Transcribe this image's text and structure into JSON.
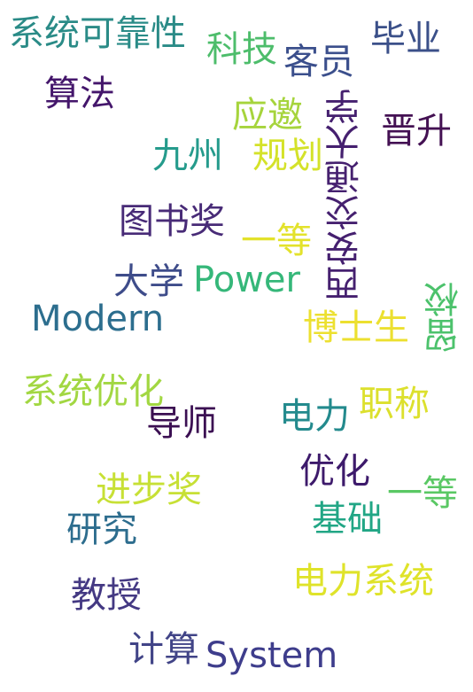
{
  "words": [
    {
      "id": "xitong-kekaoxing",
      "text": "系统可靠性",
      "color": "#2a8b87"
    },
    {
      "id": "keji",
      "text": "科技",
      "color": "#4dbd6b"
    },
    {
      "id": "keyuan",
      "text": "客员",
      "color": "#3b4f8c"
    },
    {
      "id": "biye",
      "text": "毕业",
      "color": "#3b5089"
    },
    {
      "id": "suanfa",
      "text": "算法",
      "color": "#44166b"
    },
    {
      "id": "yingyao",
      "text": "应邀",
      "color": "#a6d43c"
    },
    {
      "id": "xian-jiaotong-daxue",
      "text": "西安交通大学",
      "color": "#45206f",
      "vertical": true
    },
    {
      "id": "jinsheng",
      "text": "晋升",
      "color": "#441153"
    },
    {
      "id": "jiuzhou",
      "text": "九州",
      "color": "#259b8c"
    },
    {
      "id": "guihua",
      "text": "规划",
      "color": "#d4e229"
    },
    {
      "id": "tushujiang",
      "text": "图书奖",
      "color": "#482b77"
    },
    {
      "id": "yideng-1",
      "text": "一等",
      "color": "#e3e22b"
    },
    {
      "id": "daxue",
      "text": "大学",
      "color": "#3e4c8a"
    },
    {
      "id": "power",
      "text": "Power",
      "color": "#35b779"
    },
    {
      "id": "modern",
      "text": "Modern",
      "color": "#2c6e8e"
    },
    {
      "id": "boshisheng",
      "text": "博士生",
      "color": "#ece030"
    },
    {
      "id": "liuxiao",
      "text": "留校",
      "color": "#4cc26c",
      "vertical": true
    },
    {
      "id": "xitong-youhua",
      "text": "系统优化",
      "color": "#a2d742"
    },
    {
      "id": "dianli",
      "text": "电力",
      "color": "#238a8d"
    },
    {
      "id": "zhicheng",
      "text": "职称",
      "color": "#dce02d"
    },
    {
      "id": "daoshi",
      "text": "导师",
      "color": "#3b0f52"
    },
    {
      "id": "youhua",
      "text": "优化",
      "color": "#3d1a6b"
    },
    {
      "id": "jinbujiang",
      "text": "进步奖",
      "color": "#c7e035"
    },
    {
      "id": "yideng-2",
      "text": "一等",
      "color": "#5ac864"
    },
    {
      "id": "yanjiu",
      "text": "研究",
      "color": "#2d6d8e"
    },
    {
      "id": "jichu",
      "text": "基础",
      "color": "#21a685"
    },
    {
      "id": "dianli-xitong",
      "text": "电力系统",
      "color": "#dfe32a"
    },
    {
      "id": "jiaoshou",
      "text": "教授",
      "color": "#443983"
    },
    {
      "id": "jisuan",
      "text": "计算",
      "color": "#414487"
    },
    {
      "id": "system",
      "text": "System",
      "color": "#3e3d8c"
    }
  ]
}
